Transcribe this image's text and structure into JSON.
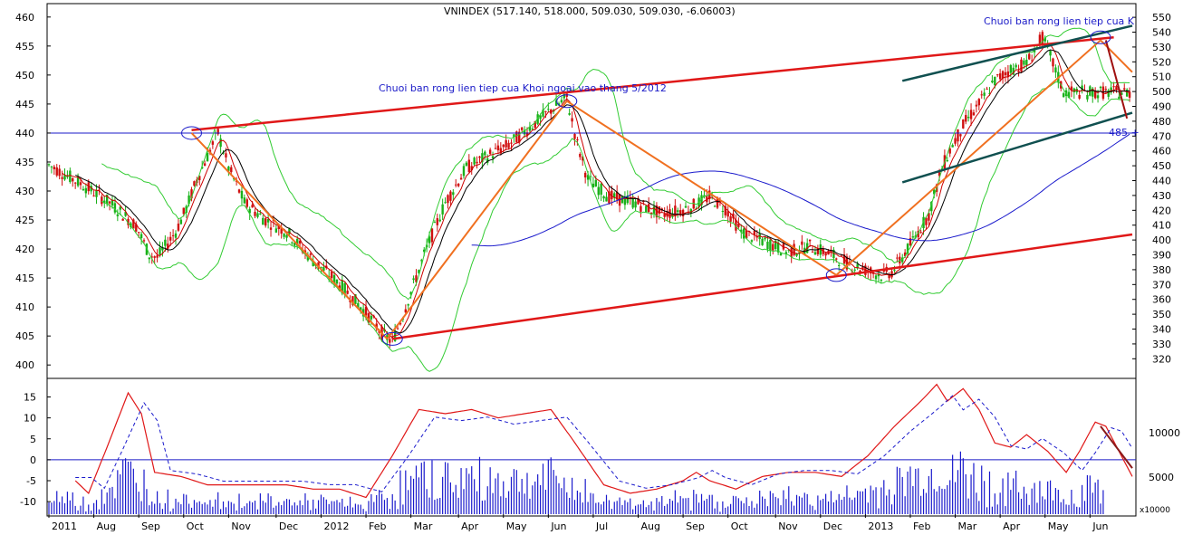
{
  "chart_data": {
    "type": "candlestick",
    "title": "VNINDEX (517.140, 518.000, 509.030, 509.030, -6.06003)",
    "price_left_axis": {
      "ylim": [
        398,
        462
      ],
      "ticks": [
        "400",
        "405",
        "410",
        "415",
        "420",
        "425",
        "430",
        "435",
        "440",
        "445",
        "450",
        "455",
        "460"
      ]
    },
    "price_right_axis": {
      "ylim": [
        308,
        558
      ],
      "ticks": [
        "320",
        "330",
        "340",
        "350",
        "360",
        "370",
        "380",
        "390",
        "400",
        "410",
        "420",
        "430",
        "440",
        "450",
        "460",
        "470",
        "480",
        "490",
        "500",
        "510",
        "520",
        "530",
        "540",
        "550"
      ]
    },
    "indicator_axis": {
      "ylim": [
        -13,
        19
      ],
      "ticks": [
        "-10",
        "-5",
        "0",
        "5",
        "10",
        "15"
      ]
    },
    "volume_axis": {
      "ticks": [
        "5000",
        "10000"
      ],
      "unit_label": "x10000"
    },
    "months": [
      "2011",
      "Aug",
      "Sep",
      "Oct",
      "Nov",
      "Dec",
      "2012",
      "Feb",
      "Mar",
      "Apr",
      "May",
      "Jun",
      "Jul",
      "Aug",
      "Sep",
      "Oct",
      "Nov",
      "Dec",
      "2013",
      "Feb",
      "Mar",
      "Apr",
      "May",
      "Jun"
    ],
    "annotations": [
      "Chuoi ban rong lien tiep cua Khoi ngoai vao thang 5/2012",
      "Chuoi ban rong lien tiep cua K"
    ],
    "level_label": "485 +",
    "price_path": [
      [
        0,
        434.5
      ],
      [
        13,
        431
      ],
      [
        23,
        428
      ],
      [
        33,
        424
      ],
      [
        38,
        419
      ],
      [
        41,
        418.5
      ],
      [
        48,
        423
      ],
      [
        52,
        427
      ],
      [
        56,
        432
      ],
      [
        60,
        436
      ],
      [
        64,
        440
      ],
      [
        68,
        434
      ],
      [
        74,
        428
      ],
      [
        82,
        425
      ],
      [
        90,
        423
      ],
      [
        100,
        418
      ],
      [
        110,
        414
      ],
      [
        120,
        409
      ],
      [
        127,
        405
      ],
      [
        130,
        404
      ],
      [
        135,
        410
      ],
      [
        142,
        419
      ],
      [
        150,
        428
      ],
      [
        158,
        434
      ],
      [
        166,
        436
      ],
      [
        174,
        438
      ],
      [
        182,
        441
      ],
      [
        190,
        444
      ],
      [
        196,
        446
      ],
      [
        200,
        438
      ],
      [
        204,
        432
      ],
      [
        212,
        429
      ],
      [
        222,
        428
      ],
      [
        232,
        426
      ],
      [
        242,
        427
      ],
      [
        250,
        429
      ],
      [
        256,
        427
      ],
      [
        262,
        423
      ],
      [
        272,
        421
      ],
      [
        280,
        419.5
      ],
      [
        288,
        420.5
      ],
      [
        296,
        419
      ],
      [
        305,
        417
      ],
      [
        315,
        415.5
      ],
      [
        319,
        416
      ],
      [
        325,
        420
      ],
      [
        333,
        426
      ],
      [
        338,
        434
      ],
      [
        342,
        438
      ],
      [
        347,
        442
      ],
      [
        352,
        445
      ],
      [
        358,
        449
      ],
      [
        364,
        451
      ],
      [
        370,
        452
      ],
      [
        374,
        455
      ],
      [
        376,
        456.5
      ],
      [
        380,
        452
      ],
      [
        384,
        447
      ]
    ],
    "indicator_path": [
      [
        10,
        -5
      ],
      [
        15,
        -8
      ],
      [
        22,
        3
      ],
      [
        30,
        16
      ],
      [
        35,
        11
      ],
      [
        40,
        -3
      ],
      [
        50,
        -4
      ],
      [
        60,
        -6
      ],
      [
        70,
        -6
      ],
      [
        80,
        -6
      ],
      [
        90,
        -6
      ],
      [
        100,
        -7
      ],
      [
        110,
        -7
      ],
      [
        120,
        -9
      ],
      [
        130,
        1
      ],
      [
        140,
        12
      ],
      [
        150,
        11
      ],
      [
        160,
        12
      ],
      [
        170,
        10
      ],
      [
        180,
        11
      ],
      [
        190,
        12
      ],
      [
        198,
        5
      ],
      [
        210,
        -6
      ],
      [
        220,
        -8
      ],
      [
        230,
        -7
      ],
      [
        240,
        -5
      ],
      [
        245,
        -3
      ],
      [
        250,
        -5
      ],
      [
        260,
        -7
      ],
      [
        270,
        -4
      ],
      [
        280,
        -3
      ],
      [
        290,
        -3
      ],
      [
        300,
        -4
      ],
      [
        310,
        1
      ],
      [
        320,
        8
      ],
      [
        330,
        14
      ],
      [
        336,
        18
      ],
      [
        340,
        14
      ],
      [
        346,
        17
      ],
      [
        352,
        12
      ],
      [
        358,
        4
      ],
      [
        364,
        3
      ],
      [
        370,
        6
      ],
      [
        378,
        2
      ],
      [
        385,
        -3
      ],
      [
        390,
        2
      ],
      [
        396,
        9
      ],
      [
        400,
        8
      ],
      [
        405,
        2
      ],
      [
        410,
        -4
      ]
    ]
  }
}
